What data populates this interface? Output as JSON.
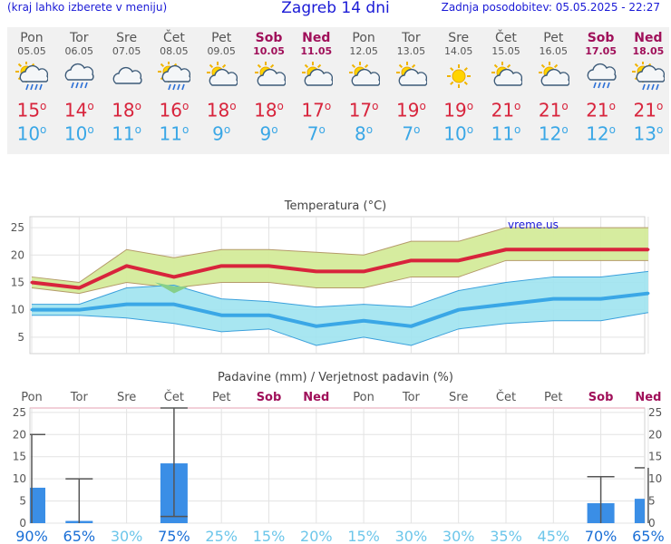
{
  "header": {
    "left": "(kraj lahko izberete v meniju)",
    "title": "Zagreb 14 dni",
    "right": "Zadnja posodobitev: 05.05.2025 - 22:27"
  },
  "days": [
    {
      "name": "Pon",
      "date": "05.05",
      "icon": "sun-cloud-rain-icon",
      "tmax": "15",
      "tmin": "10",
      "weekend": false
    },
    {
      "name": "Tor",
      "date": "06.05",
      "icon": "cloud-rain-icon",
      "tmax": "14",
      "tmin": "10",
      "weekend": false
    },
    {
      "name": "Sre",
      "date": "07.05",
      "icon": "cloud-icon",
      "tmax": "18",
      "tmin": "11",
      "weekend": false
    },
    {
      "name": "Čet",
      "date": "08.05",
      "icon": "sun-cloud-rain-icon",
      "tmax": "16",
      "tmin": "11",
      "weekend": false
    },
    {
      "name": "Pet",
      "date": "09.05",
      "icon": "sun-cloud-icon",
      "tmax": "18",
      "tmin": "9",
      "weekend": false
    },
    {
      "name": "Sob",
      "date": "10.05",
      "icon": "sun-cloud-icon",
      "tmax": "18",
      "tmin": "9",
      "weekend": true
    },
    {
      "name": "Ned",
      "date": "11.05",
      "icon": "sun-cloud-icon",
      "tmax": "17",
      "tmin": "7",
      "weekend": true
    },
    {
      "name": "Pon",
      "date": "12.05",
      "icon": "sun-cloud-icon",
      "tmax": "17",
      "tmin": "8",
      "weekend": false
    },
    {
      "name": "Tor",
      "date": "13.05",
      "icon": "sun-cloud-icon",
      "tmax": "19",
      "tmin": "7",
      "weekend": false
    },
    {
      "name": "Sre",
      "date": "14.05",
      "icon": "sun-icon",
      "tmax": "19",
      "tmin": "10",
      "weekend": false
    },
    {
      "name": "Čet",
      "date": "15.05",
      "icon": "sun-cloud-icon",
      "tmax": "21",
      "tmin": "11",
      "weekend": false
    },
    {
      "name": "Pet",
      "date": "16.05",
      "icon": "sun-cloud-icon",
      "tmax": "21",
      "tmin": "12",
      "weekend": false
    },
    {
      "name": "Sob",
      "date": "17.05",
      "icon": "cloud-rain-icon",
      "tmax": "21",
      "tmin": "12",
      "weekend": true
    },
    {
      "name": "Ned",
      "date": "18.05",
      "icon": "sun-cloud-rain-icon",
      "tmax": "21",
      "tmin": "13",
      "weekend": true
    }
  ],
  "degree_symbol": "o",
  "colors": {
    "tmax": "#d8243c",
    "tmin": "#3aa7e6",
    "weekend": "#a0105a",
    "band_max": "#d4eb9a",
    "band_min": "#9ee3ef",
    "overlap": "#86cf8a",
    "bar": "#3a8ee6"
  },
  "chart_data": [
    {
      "type": "line",
      "title": "Temperatura (°C)",
      "watermark": "vreme.us",
      "x": [
        "05.05",
        "06.05",
        "07.05",
        "08.05",
        "09.05",
        "10.05",
        "11.05",
        "12.05",
        "13.05",
        "14.05",
        "15.05",
        "16.05",
        "17.05",
        "18.05"
      ],
      "ylim": [
        2,
        27
      ],
      "yticks": [
        5,
        10,
        15,
        20,
        25
      ],
      "grid": true,
      "series": [
        {
          "name": "tmax",
          "values": [
            15,
            14,
            18,
            16,
            18,
            18,
            17,
            17,
            19,
            19,
            21,
            21,
            21,
            21
          ],
          "low": [
            14,
            13,
            15,
            14,
            15,
            15,
            14,
            14,
            16,
            16,
            19,
            19,
            19,
            19
          ],
          "high": [
            16,
            15,
            21,
            19.5,
            21,
            21,
            20.5,
            20,
            22.5,
            22.5,
            25,
            25,
            25,
            25
          ]
        },
        {
          "name": "tmin",
          "values": [
            10,
            10,
            11,
            11,
            9,
            9,
            7,
            8,
            7,
            10,
            11,
            12,
            12,
            13
          ],
          "low": [
            9,
            9,
            8.5,
            7.5,
            6,
            6.5,
            3.5,
            5,
            3.5,
            6.5,
            7.5,
            8,
            8,
            9.5
          ],
          "high": [
            11,
            11,
            14,
            14.5,
            12,
            11.5,
            10.5,
            11,
            10.5,
            13.5,
            15,
            16,
            16,
            17
          ]
        }
      ]
    },
    {
      "type": "bar",
      "title": "Padavine (mm) / Verjetnost padavin (%)",
      "categories": [
        "Pon",
        "Tor",
        "Sre",
        "Čet",
        "Pet",
        "Sob",
        "Ned",
        "Pon",
        "Tor",
        "Sre",
        "Čet",
        "Pet",
        "Sob",
        "Ned"
      ],
      "values": [
        8,
        0.5,
        0,
        13.5,
        0,
        0,
        0,
        0,
        0,
        0,
        0,
        0,
        4.5,
        5.5
      ],
      "error_high": [
        20,
        10,
        0,
        26,
        0,
        0,
        0,
        0,
        0,
        0,
        0,
        0,
        10.5,
        12.5
      ],
      "error_low": [
        0,
        0,
        0,
        1.5,
        0,
        0,
        0,
        0,
        0,
        0,
        0,
        0,
        0,
        0
      ],
      "probability": [
        "90%",
        "65%",
        "30%",
        "75%",
        "25%",
        "15%",
        "20%",
        "15%",
        "30%",
        "30%",
        "35%",
        "45%",
        "70%",
        "65%"
      ],
      "ylim": [
        0,
        26
      ],
      "yticks": [
        0,
        5,
        10,
        15,
        20,
        25
      ]
    }
  ]
}
